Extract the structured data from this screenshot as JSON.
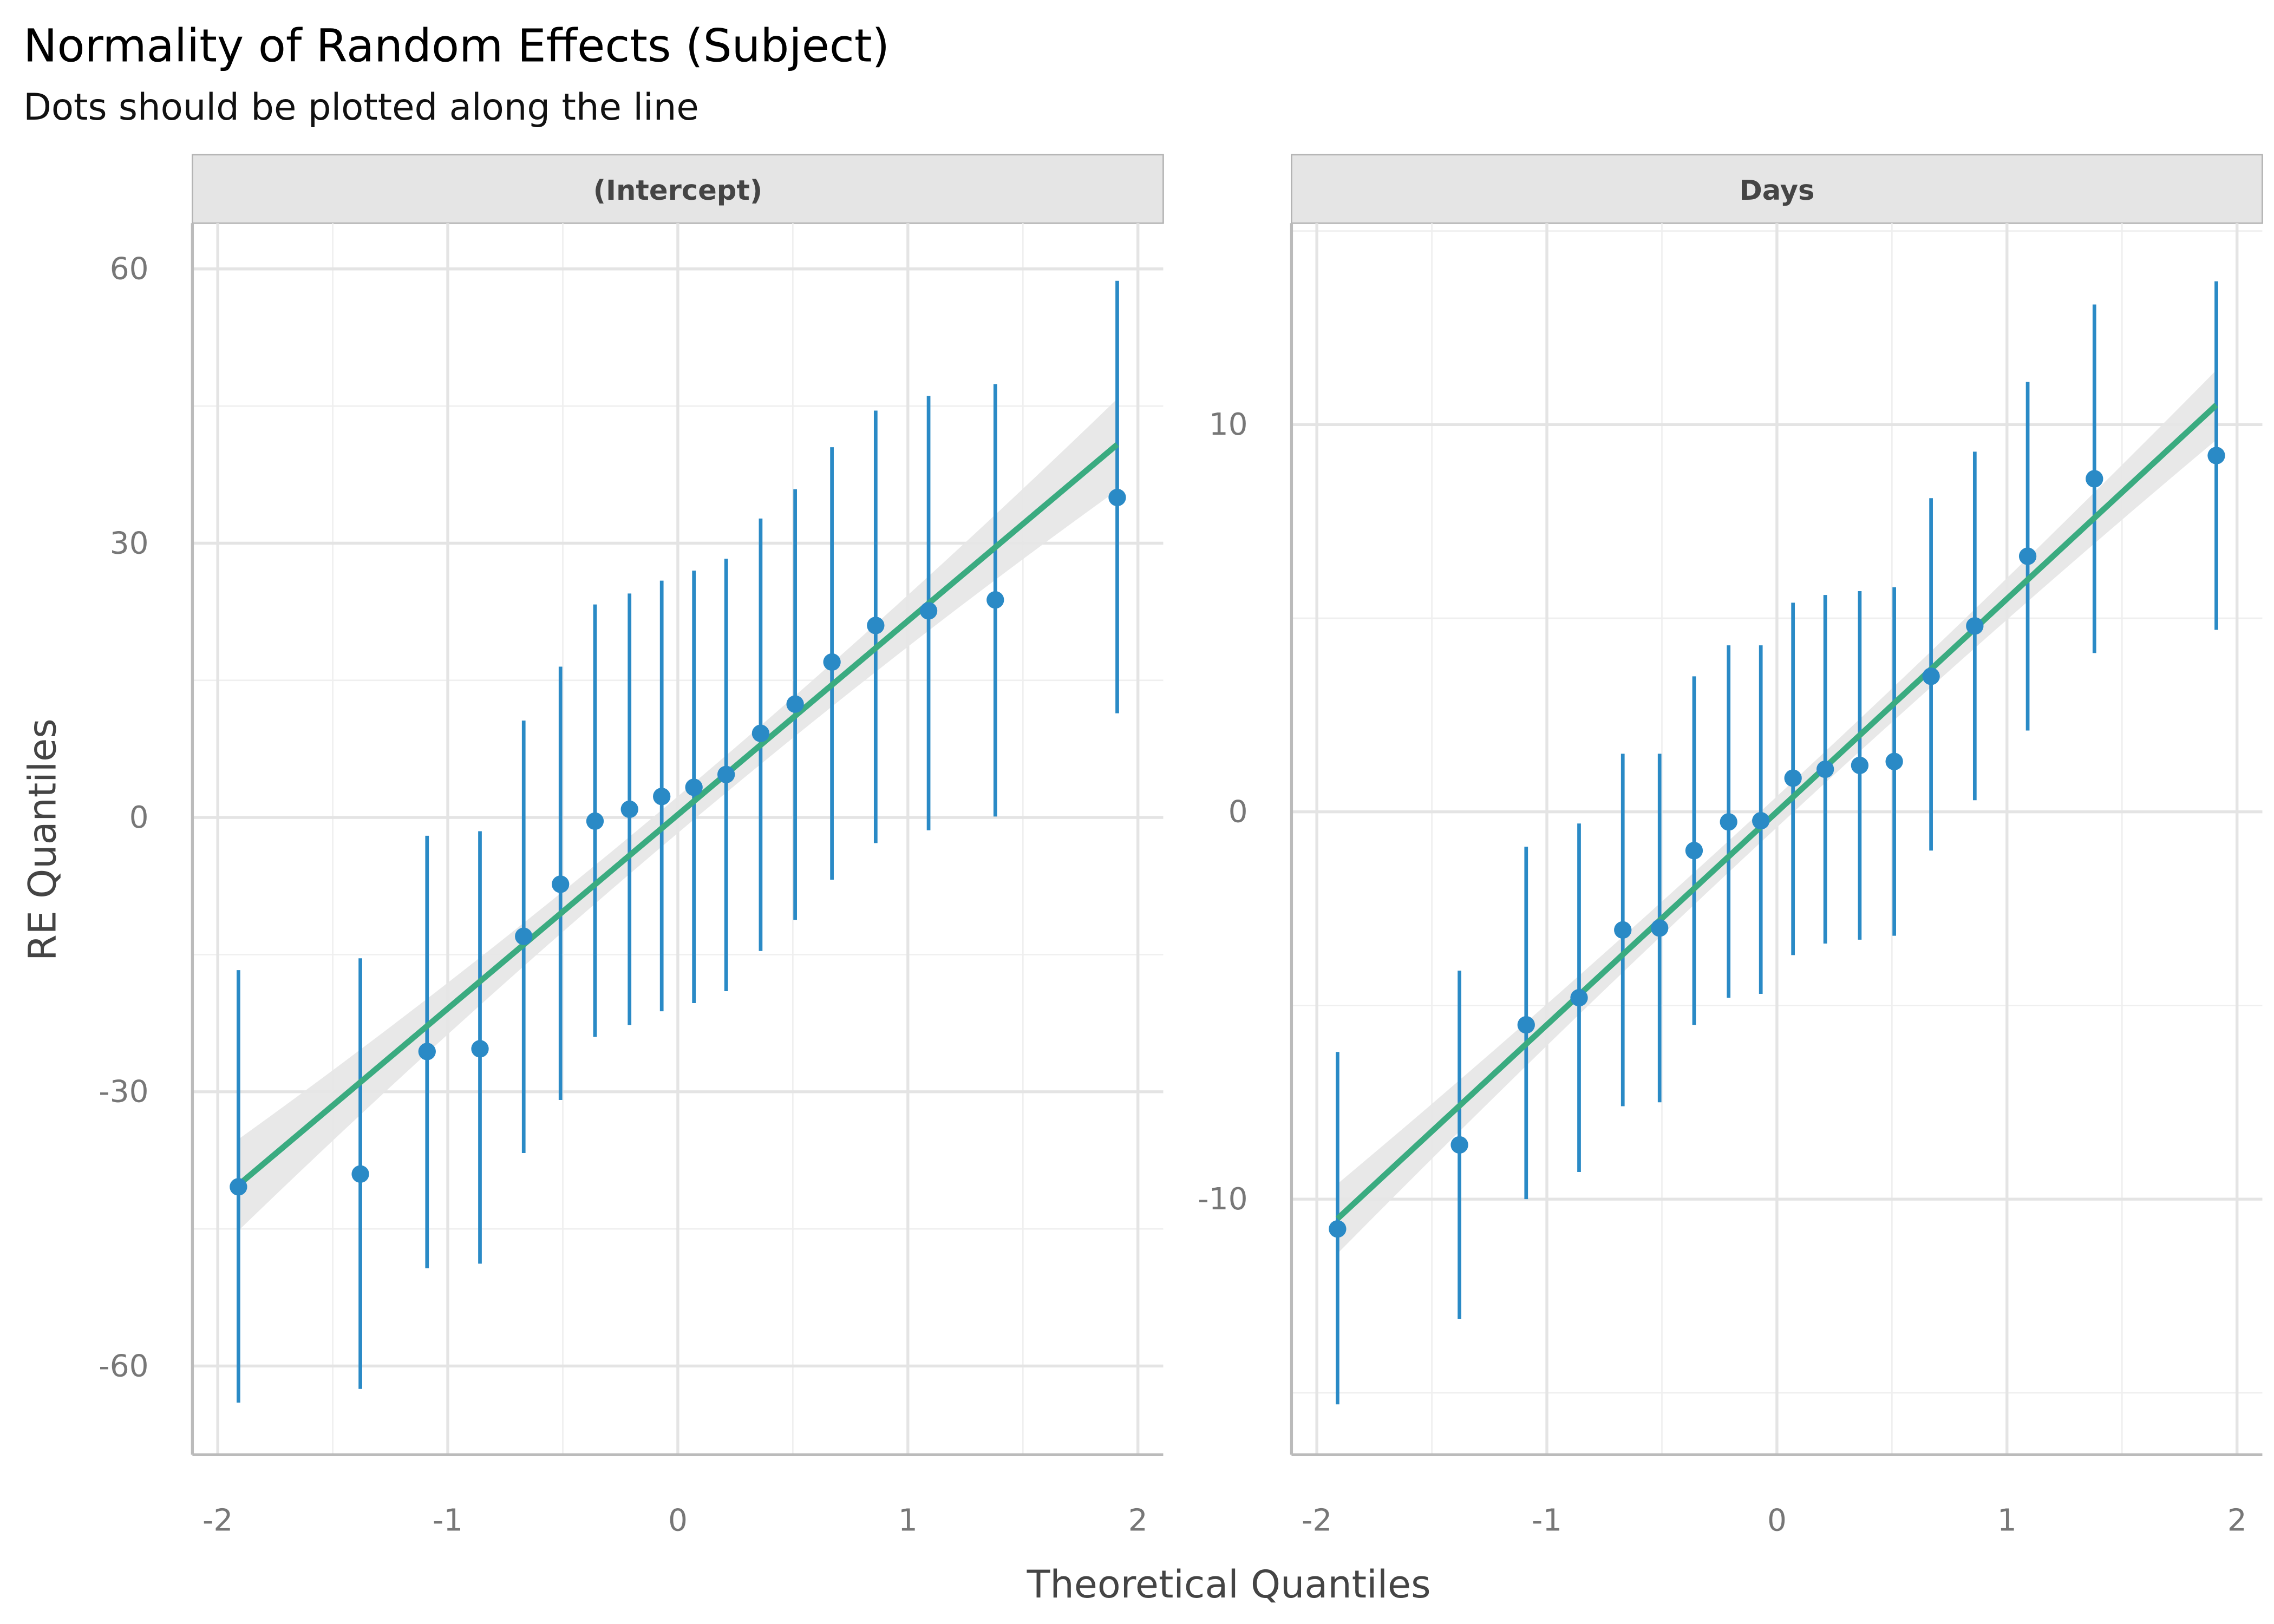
{
  "title": "Normality of Random Effects (Subject)",
  "subtitle": "Dots should be plotted along the line",
  "colors": {
    "point": "#2a8ac6",
    "line": "#3aab80",
    "band": "#e6e6e6",
    "grid": "#e4e4e4",
    "strip": "#e5e5e5"
  },
  "chart_data": [
    {
      "type": "scatter",
      "facet": "(Intercept)",
      "xlabel": "Theoretical Quantiles",
      "ylabel": "RE Quantiles",
      "xlim": [
        -2.11,
        2.11
      ],
      "ylim": [
        -69.7,
        65
      ],
      "xticks": [
        -2,
        -1,
        0,
        1,
        2
      ],
      "xtick_labels": [
        "-2",
        "-1",
        "0",
        "1",
        "2"
      ],
      "yticks": [
        -60,
        -30,
        0,
        30,
        60
      ],
      "ytick_labels": [
        "-60",
        "-30",
        "0",
        "30",
        "60"
      ],
      "yminor": [
        -45,
        -15,
        15,
        45
      ],
      "grid": true,
      "x": [
        -1.91,
        -1.38,
        -1.09,
        -0.86,
        -0.67,
        -0.51,
        -0.36,
        -0.21,
        -0.07,
        0.07,
        0.21,
        0.36,
        0.51,
        0.67,
        0.86,
        1.09,
        1.38,
        1.91
      ],
      "y": [
        -40.4,
        -39.0,
        -25.6,
        -25.3,
        -13.0,
        -7.3,
        -0.4,
        0.9,
        2.3,
        3.3,
        4.7,
        9.2,
        12.4,
        17.0,
        21.0,
        22.6,
        23.8,
        35.0
      ],
      "ci_low": [
        -64.0,
        -62.5,
        -49.3,
        -48.8,
        -36.7,
        -30.9,
        -24.0,
        -22.7,
        -21.2,
        -20.3,
        -19.0,
        -14.6,
        -11.2,
        -6.8,
        -2.8,
        -1.4,
        0.1,
        11.4
      ],
      "ci_high": [
        -16.7,
        -15.4,
        -2.0,
        -1.5,
        10.6,
        16.5,
        23.3,
        24.5,
        25.9,
        27.0,
        28.3,
        32.7,
        35.9,
        40.5,
        44.5,
        46.1,
        47.4,
        58.7
      ],
      "fit": {
        "slope": 21.2,
        "intercept": 0.3,
        "band_halfwidth_center": 2.0,
        "band_halfwidth_edge": 5.0
      }
    },
    {
      "type": "scatter",
      "facet": "Days",
      "xlabel": "Theoretical Quantiles",
      "ylabel": "RE Quantiles",
      "xlim": [
        -2.11,
        2.11
      ],
      "ylim": [
        -16.6,
        15.2
      ],
      "xticks": [
        -2,
        -1,
        0,
        1,
        2
      ],
      "xtick_labels": [
        "-2",
        "-1",
        "0",
        "1",
        "2"
      ],
      "yticks": [
        -10,
        0,
        10
      ],
      "ytick_labels": [
        "-10",
        "0",
        "10"
      ],
      "yminor": [
        -15,
        -5,
        5,
        15
      ],
      "grid": true,
      "x": [
        -1.91,
        -1.38,
        -1.09,
        -0.86,
        -0.67,
        -0.51,
        -0.36,
        -0.21,
        -0.07,
        0.07,
        0.21,
        0.36,
        0.51,
        0.67,
        0.86,
        1.09,
        1.38,
        1.91
      ],
      "y": [
        -10.77,
        -8.6,
        -5.5,
        -4.8,
        -3.05,
        -3.0,
        -1.0,
        -0.26,
        -0.23,
        0.87,
        1.1,
        1.2,
        1.3,
        3.5,
        4.8,
        6.6,
        8.6,
        9.2
      ],
      "ci_low": [
        -15.3,
        -13.1,
        -10.0,
        -9.3,
        -7.6,
        -7.5,
        -5.5,
        -4.8,
        -4.7,
        -3.7,
        -3.4,
        -3.3,
        -3.2,
        -1.0,
        0.3,
        2.1,
        4.1,
        4.7
      ],
      "ci_high": [
        -6.2,
        -4.1,
        -0.9,
        -0.3,
        1.5,
        1.5,
        3.5,
        4.3,
        4.3,
        5.4,
        5.6,
        5.7,
        5.8,
        8.1,
        9.3,
        11.1,
        13.1,
        13.7
      ],
      "fit": {
        "slope": 5.5,
        "intercept": 0.0,
        "band_halfwidth_center": 0.4,
        "band_halfwidth_edge": 0.9
      }
    }
  ]
}
